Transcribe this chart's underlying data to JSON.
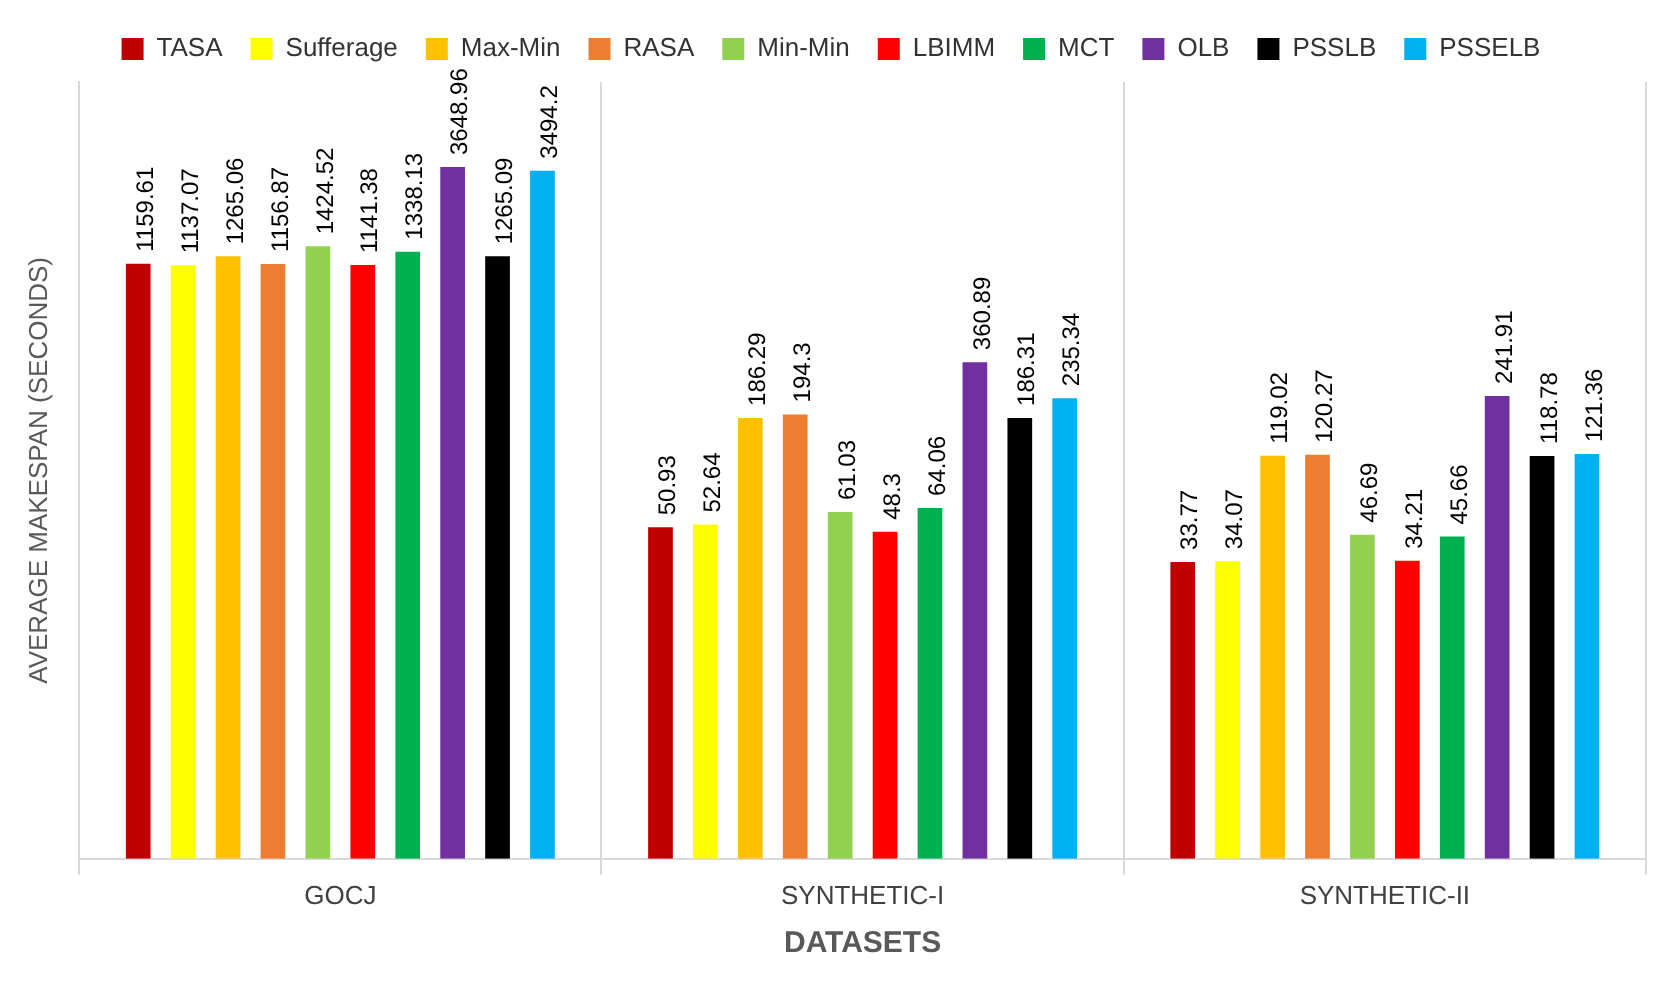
{
  "chart_data": {
    "type": "bar",
    "xlabel": "DATASETS",
    "ylabel": "AVERAGE MAKESPAN (SECONDS)",
    "categories": [
      "GOCJ",
      "SYNTHETIC-I",
      "SYNTHETIC-II"
    ],
    "series": [
      {
        "name": "TASA",
        "color": "#c00000",
        "values": [
          1159.61,
          50.93,
          33.77
        ]
      },
      {
        "name": "Sufferage",
        "color": "#ffff00",
        "values": [
          1137.07,
          52.64,
          34.07
        ]
      },
      {
        "name": "Max-Min",
        "color": "#ffc000",
        "values": [
          1265.06,
          186.29,
          119.02
        ]
      },
      {
        "name": "RASA",
        "color": "#ed7d31",
        "values": [
          1156.87,
          194.3,
          120.27
        ]
      },
      {
        "name": "Min-Min",
        "color": "#92d050",
        "values": [
          1424.52,
          61.03,
          46.69
        ]
      },
      {
        "name": "LBIMM",
        "color": "#ff0000",
        "values": [
          1141.38,
          48.3,
          34.21
        ]
      },
      {
        "name": "MCT",
        "color": "#00b050",
        "values": [
          1338.13,
          64.06,
          45.66
        ]
      },
      {
        "name": "OLB",
        "color": "#7030a0",
        "values": [
          3648.96,
          360.89,
          241.91
        ]
      },
      {
        "name": "PSSLB",
        "color": "#000000",
        "values": [
          1265.09,
          186.31,
          118.78
        ]
      },
      {
        "name": "PSSELB",
        "color": "#00b0f0",
        "values": [
          3494.2,
          235.34,
          121.36
        ]
      }
    ],
    "log": "y",
    "ylim": [
      1,
      10000
    ],
    "tick_labels": "x",
    "grid": "x",
    "legend": "top",
    "data_labels": true
  }
}
